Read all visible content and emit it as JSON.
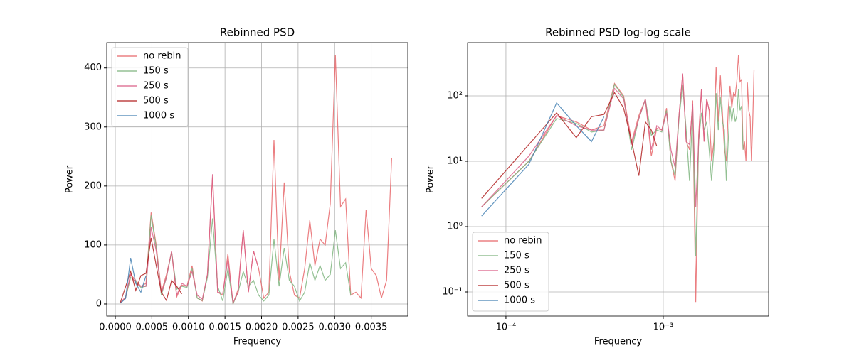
{
  "chart_data": [
    {
      "type": "line",
      "title": "Rebinned PSD",
      "xlabel": "Frequency",
      "ylabel": "Power",
      "grid": true,
      "legend": "upper left",
      "xscale": "linear",
      "yscale": "linear",
      "xlim": [
        -0.000117,
        0.004
      ],
      "ylim": [
        -20.5,
        443
      ],
      "xticks": [
        {
          "value": 0,
          "label": "0.0000"
        },
        {
          "value": 0.0005,
          "label": "0.0005"
        },
        {
          "value": 0.001,
          "label": "0.0010"
        },
        {
          "value": 0.0015,
          "label": "0.0015"
        },
        {
          "value": 0.002,
          "label": "0.0020"
        },
        {
          "value": 0.0025,
          "label": "0.0025"
        },
        {
          "value": 0.003,
          "label": "0.0030"
        },
        {
          "value": 0.0035,
          "label": "0.0035"
        }
      ],
      "yticks": [
        0,
        100,
        200,
        300,
        400
      ],
      "series": [
        {
          "name": "no rebin",
          "color": "#e8676b",
          "x": [
            7e-05,
            0.00014,
            0.00021,
            0.00028,
            0.00035,
            0.00042,
            0.00049,
            0.00056,
            0.00063,
            0.0007,
            0.00077,
            0.00084,
            0.00091,
            0.00098,
            0.00105,
            0.00112,
            0.00119,
            0.00126,
            0.00133,
            0.0014,
            0.00147,
            0.00154,
            0.00161,
            0.00168,
            0.00175,
            0.00182,
            0.00189,
            0.00196,
            0.00203,
            0.0021,
            0.00217,
            0.00224,
            0.00231,
            0.00238,
            0.00245,
            0.00252,
            0.00259,
            0.00266,
            0.00273,
            0.0028,
            0.00287,
            0.00294,
            0.00301,
            0.00308,
            0.00315,
            0.00322,
            0.00329,
            0.00336,
            0.00343,
            0.0035,
            0.00357,
            0.00364,
            0.00371,
            0.00378
          ],
          "values": [
            2,
            10,
            50,
            40,
            30,
            35,
            155,
            100,
            20,
            50,
            88,
            12,
            32,
            30,
            65,
            10,
            5,
            50,
            215,
            20,
            15,
            85,
            0.07,
            25,
            125,
            20,
            90,
            60,
            10,
            20,
            278,
            40,
            206,
            55,
            15,
            10,
            60,
            142,
            65,
            110,
            100,
            170,
            422,
            165,
            178,
            15,
            20,
            10,
            160,
            60,
            48,
            10,
            40,
            248
          ]
        },
        {
          "name": "150 s",
          "color": "#7fb57f",
          "x": [
            7e-05,
            0.00014,
            0.00021,
            0.00028,
            0.00035,
            0.00042,
            0.00049,
            0.00056,
            0.00063,
            0.0007,
            0.00077,
            0.00084,
            0.00091,
            0.00098,
            0.00105,
            0.00112,
            0.00119,
            0.00126,
            0.00133,
            0.0014,
            0.00147,
            0.00154,
            0.00161,
            0.00168,
            0.00175,
            0.00182,
            0.00189,
            0.00196,
            0.00203,
            0.0021,
            0.00217,
            0.00224,
            0.00231,
            0.00238,
            0.00245,
            0.00252,
            0.00259,
            0.00266,
            0.00273,
            0.0028,
            0.00287,
            0.00294,
            0.00301,
            0.00308,
            0.00315,
            0.00322
          ],
          "values": [
            2,
            10,
            45,
            38,
            28,
            30,
            150,
            95,
            15,
            45,
            88,
            25,
            30,
            28,
            60,
            10,
            6,
            45,
            145,
            30,
            5,
            60,
            0.35,
            20,
            55,
            30,
            40,
            15,
            5,
            15,
            110,
            30,
            95,
            40,
            30,
            5,
            20,
            70,
            40,
            65,
            40,
            50,
            125,
            60,
            70,
            15
          ]
        },
        {
          "name": "250 s",
          "color": "#db5f86",
          "x": [
            7e-05,
            0.00014,
            0.00021,
            0.00028,
            0.00035,
            0.00042,
            0.00049,
            0.00056,
            0.00063,
            0.0007,
            0.00077,
            0.00084,
            0.00091,
            0.00098,
            0.00105,
            0.00112,
            0.00119,
            0.00126,
            0.00133,
            0.0014,
            0.00147,
            0.00154,
            0.00161,
            0.00168,
            0.00175,
            0.00182,
            0.00189,
            0.00196
          ],
          "values": [
            2,
            12,
            50,
            35,
            30,
            30,
            130,
            90,
            18,
            45,
            90,
            15,
            35,
            30,
            55,
            15,
            8,
            50,
            220,
            20,
            18,
            75,
            2,
            20,
            125,
            20,
            90,
            60
          ]
        },
        {
          "name": "500 s",
          "color": "#b22222",
          "x": [
            7e-05,
            0.00021,
            0.00028,
            0.00035,
            0.00042,
            0.00049,
            0.00056,
            0.00063,
            0.0007,
            0.00077,
            0.00084,
            0.00091
          ],
          "values": [
            2.7,
            55,
            23,
            48,
            52,
            112,
            65,
            20,
            6,
            40,
            30,
            17
          ]
        },
        {
          "name": "1000 s",
          "color": "#4682b4",
          "x": [
            7e-05,
            0.00014,
            0.00021,
            0.00028,
            0.00035,
            0.00042
          ],
          "values": [
            1.45,
            9,
            78,
            35,
            20,
            48
          ]
        }
      ]
    },
    {
      "type": "line",
      "title": "Rebinned PSD log-log scale",
      "xlabel": "Frequency",
      "ylabel": "Power",
      "grid": true,
      "legend": "lower left",
      "xscale": "log",
      "yscale": "log",
      "xlim": [
        5.7e-05,
        0.00468
      ],
      "ylim": [
        0.0427,
        653
      ],
      "xticks": [
        {
          "value": 0.0001,
          "label": "10⁻⁴"
        },
        {
          "value": 0.001,
          "label": "10⁻³"
        }
      ],
      "yticks": [
        {
          "value": 0.1,
          "label": "10⁻¹"
        },
        {
          "value": 1,
          "label": "10⁰"
        },
        {
          "value": 10,
          "label": "10¹"
        },
        {
          "value": 100,
          "label": "10²"
        }
      ],
      "series": [
        {
          "name": "no rebin",
          "color": "#e8676b",
          "x": [
            7e-05,
            0.00014,
            0.00021,
            0.00028,
            0.00035,
            0.00042,
            0.00049,
            0.00056,
            0.00063,
            0.0007,
            0.00077,
            0.00084,
            0.00091,
            0.00098,
            0.00105,
            0.00112,
            0.00119,
            0.00126,
            0.00133,
            0.0014,
            0.00147,
            0.00154,
            0.00161,
            0.00168,
            0.00175,
            0.00182,
            0.00189,
            0.00196,
            0.00203,
            0.0021,
            0.00217,
            0.00224,
            0.00231,
            0.00238,
            0.00245,
            0.00252,
            0.00259,
            0.00266,
            0.00273,
            0.0028,
            0.00287,
            0.00294,
            0.00301,
            0.00308,
            0.00315,
            0.00322,
            0.00329,
            0.00336,
            0.00343,
            0.0035,
            0.00357,
            0.00364,
            0.00371,
            0.00378
          ],
          "values": [
            2,
            10,
            50,
            40,
            30,
            35,
            155,
            100,
            20,
            50,
            88,
            12,
            32,
            30,
            65,
            10,
            5,
            50,
            215,
            20,
            15,
            85,
            0.07,
            25,
            125,
            20,
            90,
            60,
            10,
            20,
            278,
            40,
            206,
            55,
            15,
            10,
            60,
            142,
            65,
            110,
            100,
            170,
            422,
            165,
            178,
            15,
            20,
            10,
            160,
            60,
            48,
            10,
            40,
            248
          ]
        },
        {
          "name": "150 s",
          "color": "#7fb57f",
          "x": [
            7e-05,
            0.00014,
            0.00021,
            0.00028,
            0.00035,
            0.00042,
            0.00049,
            0.00056,
            0.00063,
            0.0007,
            0.00077,
            0.00084,
            0.00091,
            0.00098,
            0.00105,
            0.00112,
            0.00119,
            0.00126,
            0.00133,
            0.0014,
            0.00147,
            0.00154,
            0.00161,
            0.00168,
            0.00175,
            0.00182,
            0.00189,
            0.00196,
            0.00203,
            0.0021,
            0.00217,
            0.00224,
            0.00231,
            0.00238,
            0.00245,
            0.00252,
            0.00259,
            0.00266,
            0.00273,
            0.0028,
            0.00287,
            0.00294,
            0.00301,
            0.00308,
            0.00315,
            0.00322
          ],
          "values": [
            2,
            10,
            45,
            38,
            28,
            30,
            150,
            95,
            15,
            45,
            88,
            25,
            30,
            28,
            60,
            10,
            6,
            45,
            145,
            30,
            5,
            60,
            0.35,
            20,
            55,
            30,
            40,
            15,
            5,
            15,
            110,
            30,
            95,
            40,
            30,
            5,
            20,
            70,
            40,
            65,
            40,
            50,
            125,
            60,
            70,
            15
          ]
        },
        {
          "name": "250 s",
          "color": "#db5f86",
          "x": [
            7e-05,
            0.00014,
            0.00021,
            0.00028,
            0.00035,
            0.00042,
            0.00049,
            0.00056,
            0.00063,
            0.0007,
            0.00077,
            0.00084,
            0.00091,
            0.00098,
            0.00105,
            0.00112,
            0.00119,
            0.00126,
            0.00133,
            0.0014,
            0.00147,
            0.00154,
            0.00161,
            0.00168,
            0.00175,
            0.00182,
            0.00189,
            0.00196
          ],
          "values": [
            2,
            12,
            50,
            35,
            30,
            30,
            130,
            90,
            18,
            45,
            90,
            15,
            35,
            30,
            55,
            15,
            8,
            50,
            220,
            20,
            18,
            75,
            2,
            20,
            125,
            20,
            90,
            60
          ]
        },
        {
          "name": "500 s",
          "color": "#b22222",
          "x": [
            7e-05,
            0.00021,
            0.00028,
            0.00035,
            0.00042,
            0.00049,
            0.00056,
            0.00063,
            0.0007,
            0.00077,
            0.00084,
            0.00091
          ],
          "values": [
            2.7,
            55,
            23,
            48,
            52,
            112,
            65,
            20,
            6,
            40,
            30,
            17
          ]
        },
        {
          "name": "1000 s",
          "color": "#4682b4",
          "x": [
            7e-05,
            0.00014,
            0.00021,
            0.00028,
            0.00035,
            0.00042
          ],
          "values": [
            1.45,
            9,
            78,
            35,
            20,
            48
          ]
        }
      ]
    }
  ]
}
